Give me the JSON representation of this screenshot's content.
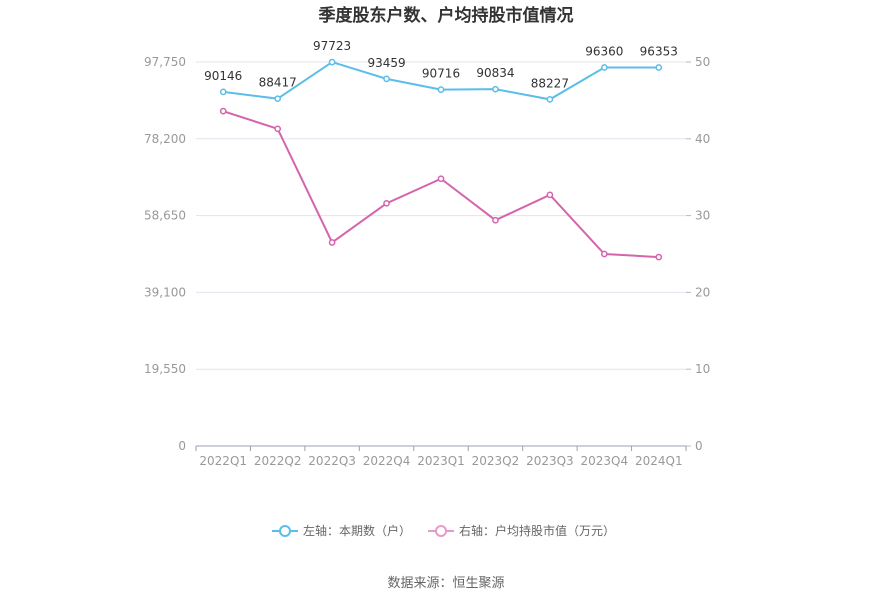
{
  "chart_data": {
    "type": "line",
    "title": "季度股东户数、户均持股市值情况",
    "categories": [
      "2022Q1",
      "2022Q2",
      "2022Q3",
      "2022Q4",
      "2023Q1",
      "2023Q2",
      "2023Q3",
      "2023Q4",
      "2024Q1"
    ],
    "left_axis": {
      "ticks": [
        "0",
        "19,550",
        "39,100",
        "58,650",
        "78,200",
        "97,750"
      ],
      "min": 0,
      "max": 97750
    },
    "right_axis": {
      "ticks": [
        "0",
        "10",
        "20",
        "30",
        "40",
        "50"
      ],
      "min": 0,
      "max": 50
    },
    "series": [
      {
        "name": "左轴：本期数（户）",
        "axis": "left",
        "color": "#5bbde9",
        "values": [
          90146,
          88417,
          97723,
          93459,
          90716,
          90834,
          88227,
          96360,
          96353
        ],
        "labels": [
          "90146",
          "88417",
          "97723",
          "93459",
          "90716",
          "90834",
          "88227",
          "96360",
          "96353"
        ]
      },
      {
        "name": "右轴：户均持股市值（万元）",
        "axis": "right",
        "color": "#d465ad",
        "values": [
          43.6,
          41.3,
          26.5,
          31.6,
          34.8,
          29.4,
          32.7,
          25.0,
          24.6
        ]
      }
    ],
    "grid": true,
    "legend_position": "bottom"
  },
  "source": "数据来源：恒生聚源"
}
